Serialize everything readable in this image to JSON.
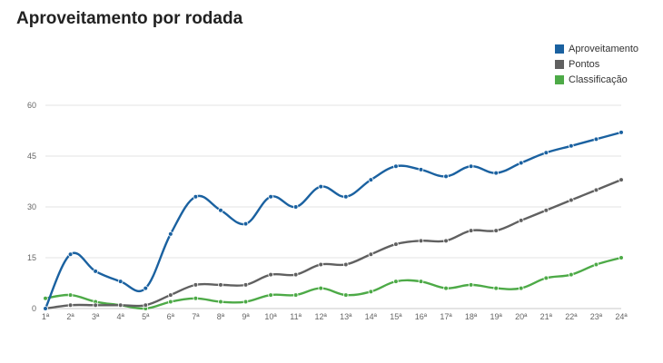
{
  "chart_data": {
    "type": "line",
    "title": "Aproveitamento por rodada",
    "xlabel": "",
    "ylabel": "",
    "categories": [
      "1ª",
      "2ª",
      "3ª",
      "4ª",
      "5ª",
      "6ª",
      "7ª",
      "8ª",
      "9ª",
      "10ª",
      "11ª",
      "12ª",
      "13ª",
      "14ª",
      "15ª",
      "16ª",
      "17ª",
      "18ª",
      "19ª",
      "20ª",
      "21ª",
      "22ª",
      "23ª",
      "24ª"
    ],
    "yticks": [
      0,
      15,
      30,
      45,
      60
    ],
    "ylim": [
      0,
      60
    ],
    "grid": true,
    "legend_position": "top-right",
    "series": [
      {
        "name": "Aproveitamento",
        "color": "#1a61a0",
        "values": [
          0,
          16,
          11,
          8,
          6,
          22,
          33,
          29,
          25,
          33,
          30,
          36,
          33,
          38,
          42,
          41,
          39,
          42,
          40,
          43,
          46,
          48,
          50,
          52
        ]
      },
      {
        "name": "Pontos",
        "color": "#606060",
        "values": [
          0,
          1,
          1,
          1,
          1,
          4,
          7,
          7,
          7,
          10,
          10,
          13,
          13,
          16,
          19,
          20,
          20,
          23,
          23,
          26,
          29,
          32,
          35,
          38
        ]
      },
      {
        "name": "Classificação",
        "color": "#4daa47",
        "values": [
          3,
          4,
          2,
          1,
          0,
          2,
          3,
          2,
          2,
          4,
          4,
          6,
          4,
          5,
          8,
          8,
          6,
          7,
          6,
          6,
          9,
          10,
          13,
          15
        ]
      }
    ]
  }
}
